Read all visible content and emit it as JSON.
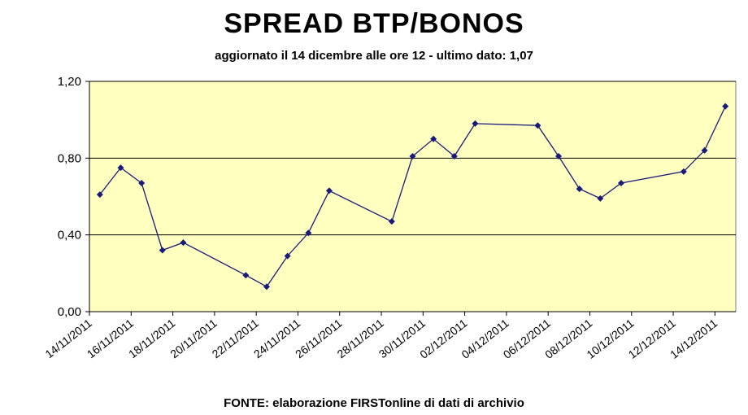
{
  "chart_data": {
    "type": "line",
    "title": "SPREAD BTP/BONOS",
    "subtitle": "aggiornato il 14 dicembre alle ore 12 - ultimo dato: 1,07",
    "source": "FONTE: elaborazione FIRSTonline di dati di archivio",
    "xlabel": "",
    "ylabel": "",
    "ylim": [
      0,
      1.2
    ],
    "yticks": [
      "0,00",
      "0,40",
      "0,80",
      "1,20"
    ],
    "ytick_values": [
      0,
      0.4,
      0.8,
      1.2
    ],
    "x_range": [
      "2011-11-14",
      "2011-12-15"
    ],
    "xticks": [
      "14/11/2011",
      "16/11/2011",
      "18/11/2011",
      "20/11/2011",
      "22/11/2011",
      "24/11/2011",
      "26/11/2011",
      "28/11/2011",
      "30/11/2011",
      "02/12/2011",
      "04/12/2011",
      "06/12/2011",
      "08/12/2011",
      "10/12/2011",
      "12/12/2011",
      "14/12/2011"
    ],
    "xtick_dates": [
      "2011-11-14",
      "2011-11-16",
      "2011-11-18",
      "2011-11-20",
      "2011-11-22",
      "2011-11-24",
      "2011-11-26",
      "2011-11-28",
      "2011-11-30",
      "2011-12-02",
      "2011-12-04",
      "2011-12-06",
      "2011-12-08",
      "2011-12-10",
      "2011-12-12",
      "2011-12-14"
    ],
    "grid": "horizontal",
    "colors": {
      "plot_background": "#ffffc0",
      "line": "#1a1a7a",
      "marker": "#1a1a7a",
      "grid": "#000000"
    },
    "series": [
      {
        "x": [
          "2011-11-14",
          "2011-11-15",
          "2011-11-16",
          "2011-11-17",
          "2011-11-18",
          "2011-11-21",
          "2011-11-22",
          "2011-11-23",
          "2011-11-24",
          "2011-11-25",
          "2011-11-28",
          "2011-11-29",
          "2011-11-30",
          "2011-12-01",
          "2011-12-02",
          "2011-12-05",
          "2011-12-06",
          "2011-12-07",
          "2011-12-08",
          "2011-12-09",
          "2011-12-12",
          "2011-12-13",
          "2011-12-14"
        ],
        "values": [
          0.61,
          0.75,
          0.67,
          0.32,
          0.36,
          0.19,
          0.13,
          0.29,
          0.41,
          0.63,
          0.47,
          0.81,
          0.9,
          0.81,
          0.98,
          0.97,
          0.81,
          0.64,
          0.59,
          0.67,
          0.73,
          0.84,
          1.07
        ]
      }
    ]
  }
}
